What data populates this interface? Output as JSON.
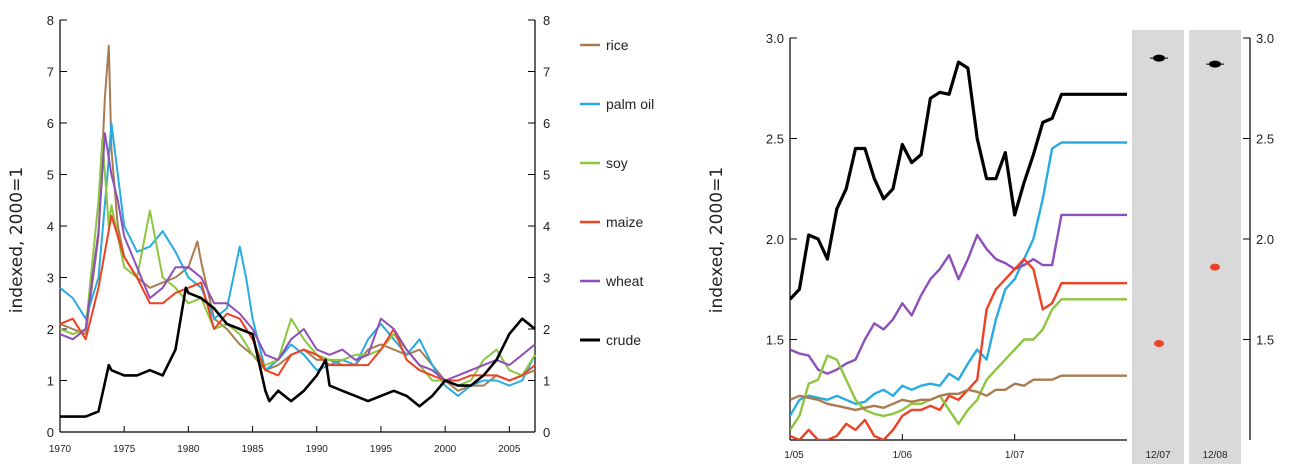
{
  "chart_data": [
    {
      "type": "line",
      "ylabel": "indexed, 2000=1",
      "xlim": [
        1970,
        2007
      ],
      "ylim": [
        0,
        8
      ],
      "x_ticks": [
        "1970",
        "1975",
        "1980",
        "1985",
        "1990",
        "1995",
        "2000",
        "2005"
      ],
      "y_ticks": [
        "0",
        "1",
        "2",
        "3",
        "4",
        "5",
        "6",
        "7",
        "8"
      ],
      "right_y_ticks": [
        "0",
        "1",
        "2",
        "3",
        "4",
        "5",
        "6",
        "7",
        "8"
      ],
      "legend_position": "right",
      "series": [
        {
          "name": "rice",
          "color": "#a97c50",
          "x": [
            1970,
            1971,
            1972,
            1973,
            1973.5,
            1973.8,
            1974,
            1974.5,
            1975,
            1976,
            1977,
            1978,
            1979,
            1980,
            1980.7,
            1981,
            1982,
            1983,
            1984,
            1985,
            1986,
            1987,
            1988,
            1989,
            1990,
            1991,
            1992,
            1993,
            1994,
            1995,
            1996,
            1997,
            1998,
            1999,
            2000,
            2001,
            2002,
            2003,
            2004,
            2005,
            2006,
            2007
          ],
          "y": [
            2.1,
            2.0,
            1.9,
            3.8,
            6.5,
            7.5,
            5.5,
            4.0,
            3.4,
            3.0,
            2.8,
            2.9,
            3.0,
            3.2,
            3.7,
            3.3,
            2.2,
            2.0,
            1.7,
            1.5,
            1.2,
            1.3,
            1.5,
            1.6,
            1.4,
            1.4,
            1.3,
            1.3,
            1.6,
            1.7,
            1.6,
            1.5,
            1.6,
            1.3,
            1.0,
            0.8,
            0.9,
            0.9,
            1.1,
            1.0,
            1.1,
            1.2
          ]
        },
        {
          "name": "palm oil",
          "color": "#29abe2",
          "x": [
            1970,
            1971,
            1972,
            1973,
            1973.7,
            1974,
            1974.5,
            1975,
            1976,
            1977,
            1978,
            1979,
            1980,
            1981,
            1982,
            1983,
            1984,
            1984.5,
            1985,
            1986,
            1987,
            1988,
            1989,
            1990,
            1991,
            1992,
            1993,
            1994,
            1995,
            1996,
            1997,
            1998,
            1999,
            2000,
            2001,
            2002,
            2003,
            2004,
            2005,
            2006,
            2007
          ],
          "y": [
            2.8,
            2.6,
            2.2,
            3.0,
            5.0,
            6.0,
            5.0,
            4.0,
            3.5,
            3.6,
            3.9,
            3.5,
            3.0,
            2.8,
            2.2,
            2.4,
            3.6,
            3.0,
            2.2,
            1.2,
            1.4,
            1.7,
            1.5,
            1.2,
            1.3,
            1.4,
            1.3,
            1.8,
            2.1,
            1.8,
            1.5,
            1.8,
            1.3,
            0.9,
            0.7,
            0.9,
            1.0,
            1.0,
            0.9,
            1.0,
            1.5
          ]
        },
        {
          "name": "soy",
          "color": "#8dc63f",
          "x": [
            1970,
            1971,
            1972,
            1973,
            1973.3,
            1973.8,
            1974,
            1975,
            1976,
            1977,
            1978,
            1979,
            1980,
            1981,
            1982,
            1983,
            1984,
            1985,
            1986,
            1987,
            1988,
            1989,
            1990,
            1991,
            1992,
            1993,
            1994,
            1995,
            1996,
            1997,
            1998,
            1999,
            2000,
            2001,
            2002,
            2003,
            2004,
            2005,
            2006,
            2007
          ],
          "y": [
            2.0,
            1.9,
            2.0,
            4.5,
            5.7,
            4.0,
            4.4,
            3.2,
            3.0,
            4.3,
            3.0,
            2.8,
            2.5,
            2.6,
            2.0,
            2.1,
            1.9,
            1.5,
            1.3,
            1.4,
            2.2,
            1.8,
            1.5,
            1.4,
            1.4,
            1.5,
            1.5,
            1.6,
            1.9,
            1.6,
            1.3,
            1.0,
            1.0,
            0.9,
            1.0,
            1.4,
            1.6,
            1.2,
            1.1,
            1.5
          ]
        },
        {
          "name": "maize",
          "color": "#ef4123",
          "x": [
            1970,
            1971,
            1972,
            1973,
            1973.5,
            1974,
            1974.5,
            1975,
            1976,
            1977,
            1978,
            1979,
            1980,
            1981,
            1982,
            1983,
            1984,
            1985,
            1986,
            1987,
            1988,
            1989,
            1990,
            1991,
            1992,
            1993,
            1994,
            1995,
            1996,
            1997,
            1998,
            1999,
            2000,
            2001,
            2002,
            2003,
            2004,
            2005,
            2006,
            2007
          ],
          "y": [
            2.1,
            2.2,
            1.8,
            2.8,
            3.5,
            4.2,
            3.8,
            3.4,
            3.0,
            2.5,
            2.5,
            2.7,
            2.8,
            2.9,
            2.0,
            2.3,
            2.2,
            1.8,
            1.2,
            1.1,
            1.5,
            1.6,
            1.5,
            1.3,
            1.3,
            1.3,
            1.3,
            1.6,
            2.0,
            1.4,
            1.2,
            1.1,
            1.0,
            1.0,
            1.1,
            1.1,
            1.1,
            1.0,
            1.1,
            1.3
          ]
        },
        {
          "name": "wheat",
          "color": "#8e4fb8",
          "x": [
            1970,
            1971,
            1972,
            1973,
            1973.5,
            1974,
            1974.5,
            1975,
            1976,
            1977,
            1978,
            1979,
            1980,
            1981,
            1982,
            1983,
            1984,
            1985,
            1986,
            1987,
            1988,
            1989,
            1990,
            1991,
            1992,
            1993,
            1994,
            1995,
            1996,
            1997,
            1998,
            1999,
            2000,
            2001,
            2002,
            2003,
            2004,
            2005,
            2006,
            2007
          ],
          "y": [
            1.9,
            1.8,
            2.0,
            3.9,
            5.8,
            5.0,
            4.5,
            3.8,
            3.2,
            2.6,
            2.8,
            3.2,
            3.2,
            3.0,
            2.5,
            2.5,
            2.3,
            2.0,
            1.5,
            1.4,
            1.8,
            2.0,
            1.6,
            1.5,
            1.6,
            1.4,
            1.5,
            2.2,
            2.0,
            1.6,
            1.3,
            1.2,
            1.0,
            1.1,
            1.2,
            1.3,
            1.4,
            1.3,
            1.5,
            1.7
          ]
        },
        {
          "name": "crude",
          "color": "#000000",
          "x": [
            1970,
            1971,
            1972,
            1973,
            1973.8,
            1974,
            1975,
            1976,
            1977,
            1978,
            1979,
            1979.8,
            1980,
            1981,
            1982,
            1983,
            1984,
            1985,
            1986,
            1986.3,
            1987,
            1988,
            1989,
            1990,
            1990.7,
            1991,
            1992,
            1993,
            1994,
            1995,
            1996,
            1997,
            1998,
            1999,
            2000,
            2001,
            2002,
            2003,
            2004,
            2005,
            2006,
            2007
          ],
          "y": [
            0.3,
            0.3,
            0.3,
            0.4,
            1.3,
            1.2,
            1.1,
            1.1,
            1.2,
            1.1,
            1.6,
            2.8,
            2.7,
            2.6,
            2.4,
            2.1,
            2.0,
            1.9,
            0.8,
            0.6,
            0.8,
            0.6,
            0.8,
            1.1,
            1.4,
            0.9,
            0.8,
            0.7,
            0.6,
            0.7,
            0.8,
            0.7,
            0.5,
            0.7,
            1.0,
            0.9,
            0.9,
            1.1,
            1.4,
            1.9,
            2.2,
            2.0
          ]
        }
      ]
    },
    {
      "type": "line",
      "ylabel": "indexed, 2000=1",
      "ylim": [
        1.0,
        3.0
      ],
      "y_ticks": [
        "1.5",
        "2.0",
        "2.5",
        "3.0"
      ],
      "right_y_ticks": [
        "1.5",
        "2.0",
        "2.5",
        "3.0"
      ],
      "x_ticks": [
        "1/05",
        "1/06",
        "1/07"
      ],
      "band_labels": [
        "12/07",
        "12/08"
      ],
      "band_points": [
        {
          "band": "12/07",
          "crude": 2.9,
          "maize": 1.48
        },
        {
          "band": "12/08",
          "crude": 2.87,
          "maize": 1.86
        }
      ],
      "series": [
        {
          "name": "crude",
          "color": "#000000",
          "x": [
            0,
            1,
            2,
            3,
            4,
            5,
            6,
            7,
            8,
            9,
            10,
            11,
            12,
            13,
            14,
            15,
            16,
            17,
            18,
            19,
            20,
            21,
            22,
            23,
            24,
            25,
            26,
            27,
            28,
            29,
            30,
            31,
            32,
            33,
            34,
            35,
            36
          ],
          "y": [
            1.7,
            1.75,
            2.02,
            2.0,
            1.9,
            2.15,
            2.25,
            2.45,
            2.45,
            2.3,
            2.2,
            2.25,
            2.47,
            2.38,
            2.42,
            2.7,
            2.73,
            2.72,
            2.88,
            2.85,
            2.5,
            2.3,
            2.3,
            2.43,
            2.12,
            2.28,
            2.42,
            2.58,
            2.6,
            2.72,
            2.72,
            2.72,
            2.72,
            2.72,
            2.72,
            2.72,
            2.72
          ]
        },
        {
          "name": "palm oil",
          "color": "#29abe2",
          "x": [
            0,
            1,
            2,
            3,
            4,
            5,
            6,
            7,
            8,
            9,
            10,
            11,
            12,
            13,
            14,
            15,
            16,
            17,
            18,
            19,
            20,
            21,
            22,
            23,
            24,
            25,
            26,
            27,
            28,
            29,
            30,
            31,
            32,
            33,
            34,
            35,
            36
          ],
          "y": [
            1.12,
            1.2,
            1.22,
            1.21,
            1.2,
            1.22,
            1.2,
            1.18,
            1.19,
            1.23,
            1.25,
            1.22,
            1.27,
            1.25,
            1.27,
            1.28,
            1.27,
            1.33,
            1.3,
            1.38,
            1.45,
            1.4,
            1.6,
            1.75,
            1.8,
            1.9,
            2.0,
            2.2,
            2.45,
            2.48,
            2.48,
            2.48,
            2.48,
            2.48,
            2.48,
            2.48,
            2.48
          ]
        },
        {
          "name": "wheat",
          "color": "#8e4fb8",
          "x": [
            0,
            1,
            2,
            3,
            4,
            5,
            6,
            7,
            8,
            9,
            10,
            11,
            12,
            13,
            14,
            15,
            16,
            17,
            18,
            19,
            20,
            21,
            22,
            23,
            24,
            25,
            26,
            27,
            28,
            29,
            30,
            31,
            32,
            33,
            34,
            35,
            36
          ],
          "y": [
            1.45,
            1.43,
            1.42,
            1.35,
            1.33,
            1.35,
            1.38,
            1.4,
            1.5,
            1.58,
            1.55,
            1.6,
            1.68,
            1.62,
            1.72,
            1.8,
            1.85,
            1.92,
            1.8,
            1.9,
            2.02,
            1.95,
            1.9,
            1.88,
            1.85,
            1.87,
            1.9,
            1.87,
            1.87,
            2.12,
            2.12,
            2.12,
            2.12,
            2.12,
            2.12,
            2.12,
            2.12
          ]
        },
        {
          "name": "maize",
          "color": "#ef4123",
          "x": [
            0,
            1,
            2,
            3,
            4,
            5,
            6,
            7,
            8,
            9,
            10,
            11,
            12,
            13,
            14,
            15,
            16,
            17,
            18,
            19,
            20,
            21,
            22,
            23,
            24,
            25,
            26,
            27,
            28,
            29,
            30,
            31,
            32,
            33,
            34,
            35,
            36
          ],
          "y": [
            1.02,
            1.0,
            1.05,
            1.0,
            1.0,
            1.02,
            1.08,
            1.05,
            1.1,
            1.02,
            1.0,
            1.05,
            1.12,
            1.15,
            1.15,
            1.17,
            1.15,
            1.22,
            1.2,
            1.25,
            1.3,
            1.65,
            1.75,
            1.8,
            1.85,
            1.9,
            1.85,
            1.65,
            1.68,
            1.78,
            1.78,
            1.78,
            1.78,
            1.78,
            1.78,
            1.78,
            1.78
          ]
        },
        {
          "name": "soy",
          "color": "#8dc63f",
          "x": [
            0,
            1,
            2,
            3,
            4,
            5,
            6,
            7,
            8,
            9,
            10,
            11,
            12,
            13,
            14,
            15,
            16,
            17,
            18,
            19,
            20,
            21,
            22,
            23,
            24,
            25,
            26,
            27,
            28,
            29,
            30,
            31,
            32,
            33,
            34,
            35,
            36
          ],
          "y": [
            1.05,
            1.12,
            1.28,
            1.3,
            1.42,
            1.4,
            1.3,
            1.2,
            1.15,
            1.13,
            1.12,
            1.13,
            1.15,
            1.18,
            1.18,
            1.2,
            1.22,
            1.15,
            1.08,
            1.15,
            1.2,
            1.3,
            1.35,
            1.4,
            1.45,
            1.5,
            1.5,
            1.55,
            1.65,
            1.7,
            1.7,
            1.7,
            1.7,
            1.7,
            1.7,
            1.7,
            1.7
          ]
        },
        {
          "name": "rice",
          "color": "#a97c50",
          "x": [
            0,
            1,
            2,
            3,
            4,
            5,
            6,
            7,
            8,
            9,
            10,
            11,
            12,
            13,
            14,
            15,
            16,
            17,
            18,
            19,
            20,
            21,
            22,
            23,
            24,
            25,
            26,
            27,
            28,
            29,
            30,
            31,
            32,
            33,
            34,
            35,
            36
          ],
          "y": [
            1.2,
            1.22,
            1.21,
            1.2,
            1.18,
            1.17,
            1.16,
            1.15,
            1.16,
            1.17,
            1.16,
            1.18,
            1.2,
            1.19,
            1.2,
            1.2,
            1.22,
            1.23,
            1.23,
            1.25,
            1.24,
            1.22,
            1.25,
            1.25,
            1.28,
            1.27,
            1.3,
            1.3,
            1.3,
            1.32,
            1.32,
            1.32,
            1.32,
            1.32,
            1.32,
            1.32,
            1.32
          ]
        }
      ]
    }
  ]
}
